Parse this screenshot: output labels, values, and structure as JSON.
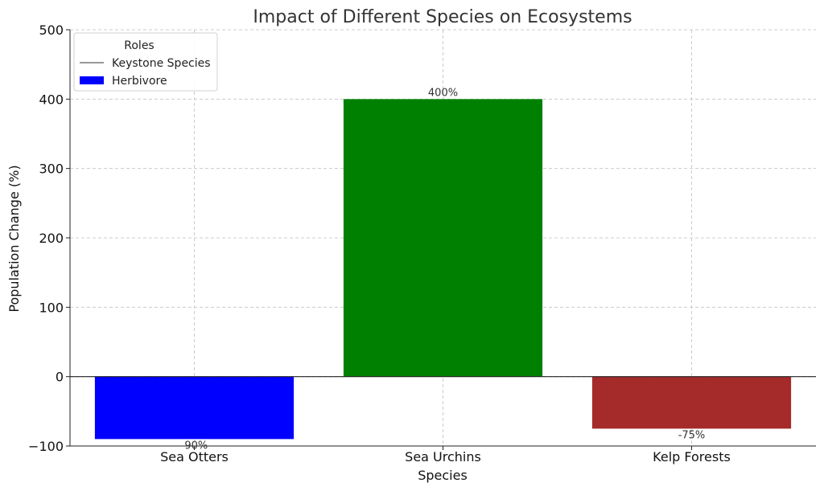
{
  "chart_data": {
    "type": "bar",
    "title": "Impact of Different Species on Ecosystems",
    "xlabel": "Species",
    "ylabel": "Population Change (%)",
    "categories": [
      "Sea Otters",
      "Sea Urchins",
      "Kelp Forests"
    ],
    "values": [
      -90,
      400,
      -75
    ],
    "data_labels": [
      "-90%",
      "400%",
      "-75%"
    ],
    "colors": [
      "#0000ff",
      "#008000",
      "#a52a2a"
    ],
    "ylim": [
      -100,
      500
    ],
    "yticks": [
      -100,
      0,
      100,
      200,
      300,
      400,
      500
    ],
    "grid": true,
    "legend": {
      "title": "Roles",
      "placement": "top-left",
      "entries": [
        {
          "label": "Keystone Species",
          "marker": "line",
          "color": "#333333"
        },
        {
          "label": "Herbivore",
          "marker": "patch",
          "color": "#0000ff"
        }
      ]
    }
  }
}
